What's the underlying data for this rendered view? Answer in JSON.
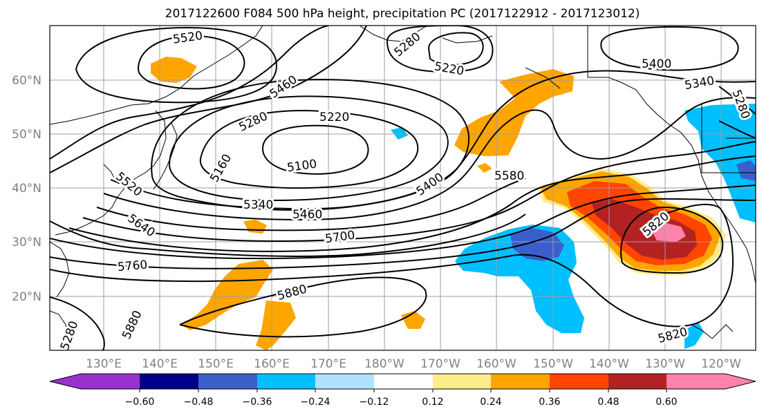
{
  "title": "2017122600 F084 500 hPa height, precipitation PC (2017122912 - 2017123012)",
  "lat_labels": [
    "60°N",
    "50°N",
    "40°N",
    "30°N",
    "20°N"
  ],
  "lon_labels": [
    "130°E",
    "140°E",
    "150°E",
    "160°E",
    "170°E",
    "180°W",
    "170°W",
    "160°W",
    "150°W",
    "140°W",
    "130°W",
    "120°W"
  ],
  "colorbar": {
    "tick_labels": [
      "−0.60",
      "−0.48",
      "−0.36",
      "−0.24",
      "−0.12",
      "0.12",
      "0.24",
      "0.36",
      "0.48",
      "0.60"
    ],
    "colors": [
      "#9932cc",
      "#00008b",
      "#3a5fcd",
      "#00bfff",
      "#b0e2ff",
      "#ffffff",
      "#ffec8b",
      "#ffa500",
      "#ff4500",
      "#b22222",
      "#ff82ab"
    ]
  },
  "contour_labels": [
    "5520",
    "5460",
    "5280",
    "5220",
    "5280",
    "5160",
    "5100",
    "5400",
    "5580",
    "5340",
    "5460",
    "5520",
    "5640",
    "5700",
    "5760",
    "5880",
    "5880",
    "5820",
    "5820",
    "5400",
    "5340",
    "5280",
    "5220",
    "5280"
  ],
  "shading_colors": {
    "orange": "#ffa500",
    "light_orange": "#ffec8b",
    "red_orange": "#ff4500",
    "dark_red": "#b22222",
    "pink": "#ff82ab",
    "sky": "#00bfff",
    "royal": "#3a5fcd"
  }
}
